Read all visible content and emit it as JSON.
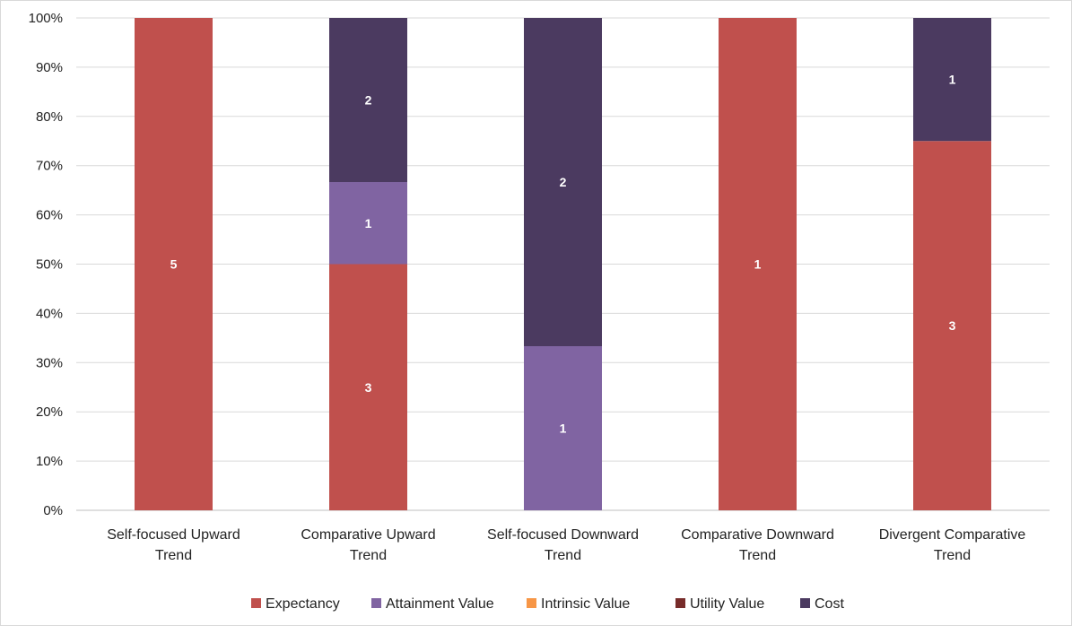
{
  "chart_data": {
    "type": "bar",
    "stacked": true,
    "normalized": true,
    "categories": [
      [
        "Self-focused Upward",
        "Trend"
      ],
      [
        "Comparative Upward",
        "Trend"
      ],
      [
        "Self-focused Downward",
        "Trend"
      ],
      [
        "Comparative Downward",
        "Trend"
      ],
      [
        "Divergent Comparative",
        "Trend"
      ]
    ],
    "series": [
      {
        "name": "Expectancy",
        "color": "#c0504d",
        "values": [
          5,
          3,
          0,
          1,
          3
        ]
      },
      {
        "name": "Attainment Value",
        "color": "#8064a2",
        "values": [
          0,
          1,
          1,
          0,
          0
        ]
      },
      {
        "name": "Intrinsic Value",
        "color": "#f79646",
        "values": [
          0,
          0,
          0,
          0,
          0
        ]
      },
      {
        "name": "Utility Value",
        "color": "#772c2a",
        "values": [
          0,
          0,
          0,
          0,
          0
        ]
      },
      {
        "name": "Cost",
        "color": "#4b3a60",
        "values": [
          0,
          2,
          2,
          0,
          1
        ]
      }
    ],
    "y_ticks": [
      "0%",
      "10%",
      "20%",
      "30%",
      "40%",
      "50%",
      "60%",
      "70%",
      "80%",
      "90%",
      "100%"
    ],
    "ylim": [
      0,
      100
    ],
    "grid": true,
    "legend_position": "bottom",
    "title": "",
    "xlabel": "",
    "ylabel": ""
  }
}
